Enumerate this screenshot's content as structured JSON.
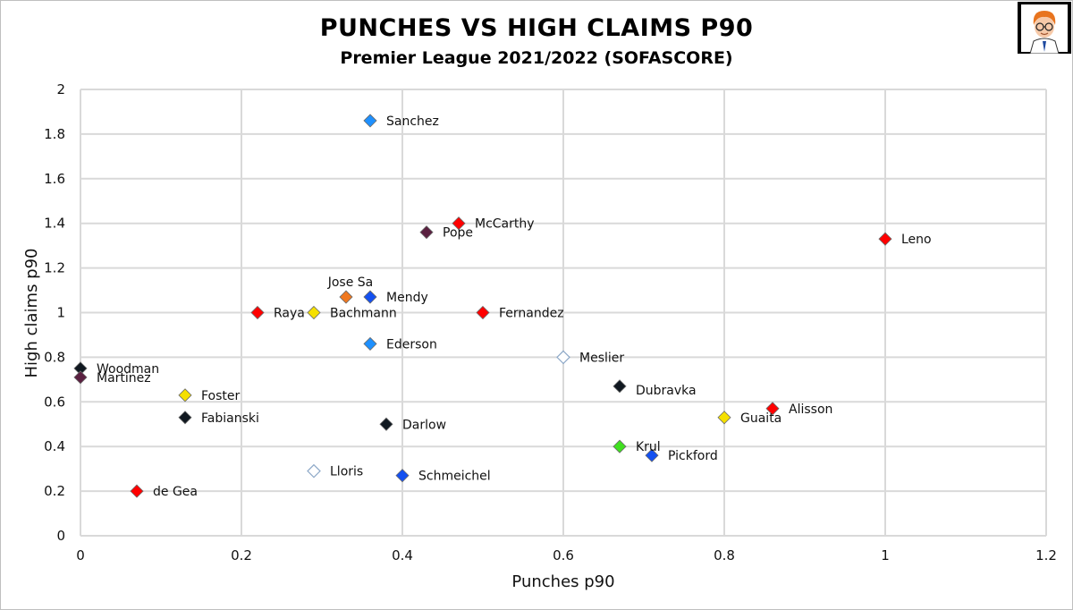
{
  "header": {
    "title": "PUNCHES VS HIGH CLAIMS P90",
    "subtitle": "Premier League 2021/2022 (SOFASCORE)"
  },
  "chart_data": {
    "type": "scatter",
    "title": "PUNCHES VS HIGH CLAIMS P90",
    "subtitle": "Premier League 2021/2022 (SOFASCORE)",
    "xlabel": "Punches p90",
    "ylabel": "High claims p90",
    "xlim": [
      0,
      1.2
    ],
    "ylim": [
      0,
      2
    ],
    "xticks": [
      "0",
      "0.2",
      "0.4",
      "0.6",
      "0.8",
      "1",
      "1.2"
    ],
    "yticks": [
      "0",
      "0.2",
      "0.4",
      "0.6",
      "0.8",
      "1",
      "1.2",
      "1.4",
      "1.6",
      "1.8",
      "2"
    ],
    "grid": true,
    "points": [
      {
        "name": "Sanchez",
        "x": 0.36,
        "y": 1.86,
        "color": "#1e90ff",
        "hollow": false,
        "label_pos": "right"
      },
      {
        "name": "McCarthy",
        "x": 0.47,
        "y": 1.4,
        "color": "#ff0000",
        "hollow": false,
        "label_pos": "right"
      },
      {
        "name": "Pope",
        "x": 0.43,
        "y": 1.36,
        "color": "#5a2040",
        "hollow": false,
        "label_pos": "right"
      },
      {
        "name": "Leno",
        "x": 1.0,
        "y": 1.33,
        "color": "#ff0000",
        "hollow": false,
        "label_pos": "right"
      },
      {
        "name": "Jose Sa",
        "x": 0.33,
        "y": 1.07,
        "color": "#f07820",
        "hollow": false,
        "label_pos": "above"
      },
      {
        "name": "Mendy",
        "x": 0.36,
        "y": 1.07,
        "color": "#1450f0",
        "hollow": false,
        "label_pos": "right"
      },
      {
        "name": "Raya",
        "x": 0.22,
        "y": 1.0,
        "color": "#ff0000",
        "hollow": false,
        "label_pos": "right"
      },
      {
        "name": "Bachmann",
        "x": 0.29,
        "y": 1.0,
        "color": "#f5e000",
        "hollow": false,
        "label_pos": "right"
      },
      {
        "name": "Fernandez",
        "x": 0.5,
        "y": 1.0,
        "color": "#ff0000",
        "hollow": false,
        "label_pos": "right"
      },
      {
        "name": "Ederson",
        "x": 0.36,
        "y": 0.86,
        "color": "#1e90ff",
        "hollow": false,
        "label_pos": "right"
      },
      {
        "name": "Meslier",
        "x": 0.6,
        "y": 0.8,
        "color": "#ffffff",
        "hollow": true,
        "label_pos": "right"
      },
      {
        "name": "Woodman",
        "x": 0.0,
        "y": 0.75,
        "color": "#101820",
        "hollow": false,
        "label_pos": "right"
      },
      {
        "name": "Martinez",
        "x": 0.0,
        "y": 0.71,
        "color": "#5a2040",
        "hollow": false,
        "label_pos": "right"
      },
      {
        "name": "Dubravka",
        "x": 0.67,
        "y": 0.67,
        "color": "#101820",
        "hollow": false,
        "label_pos": "right-below"
      },
      {
        "name": "Foster",
        "x": 0.13,
        "y": 0.63,
        "color": "#f5e000",
        "hollow": false,
        "label_pos": "right"
      },
      {
        "name": "Alisson",
        "x": 0.86,
        "y": 0.57,
        "color": "#ff0000",
        "hollow": false,
        "label_pos": "right"
      },
      {
        "name": "Fabianski",
        "x": 0.13,
        "y": 0.53,
        "color": "#101820",
        "hollow": false,
        "label_pos": "right"
      },
      {
        "name": "Guaita",
        "x": 0.8,
        "y": 0.53,
        "color": "#f5e000",
        "hollow": false,
        "label_pos": "right"
      },
      {
        "name": "Darlow",
        "x": 0.38,
        "y": 0.5,
        "color": "#101820",
        "hollow": false,
        "label_pos": "right"
      },
      {
        "name": "Krul",
        "x": 0.67,
        "y": 0.4,
        "color": "#40e020",
        "hollow": false,
        "label_pos": "right"
      },
      {
        "name": "Pickford",
        "x": 0.71,
        "y": 0.36,
        "color": "#1450f0",
        "hollow": false,
        "label_pos": "right"
      },
      {
        "name": "Lloris",
        "x": 0.29,
        "y": 0.29,
        "color": "#ffffff",
        "hollow": true,
        "label_pos": "right"
      },
      {
        "name": "Schmeichel",
        "x": 0.4,
        "y": 0.27,
        "color": "#1450f0",
        "hollow": false,
        "label_pos": "right"
      },
      {
        "name": "de Gea",
        "x": 0.07,
        "y": 0.2,
        "color": "#ff0000",
        "hollow": false,
        "label_pos": "right"
      }
    ]
  }
}
